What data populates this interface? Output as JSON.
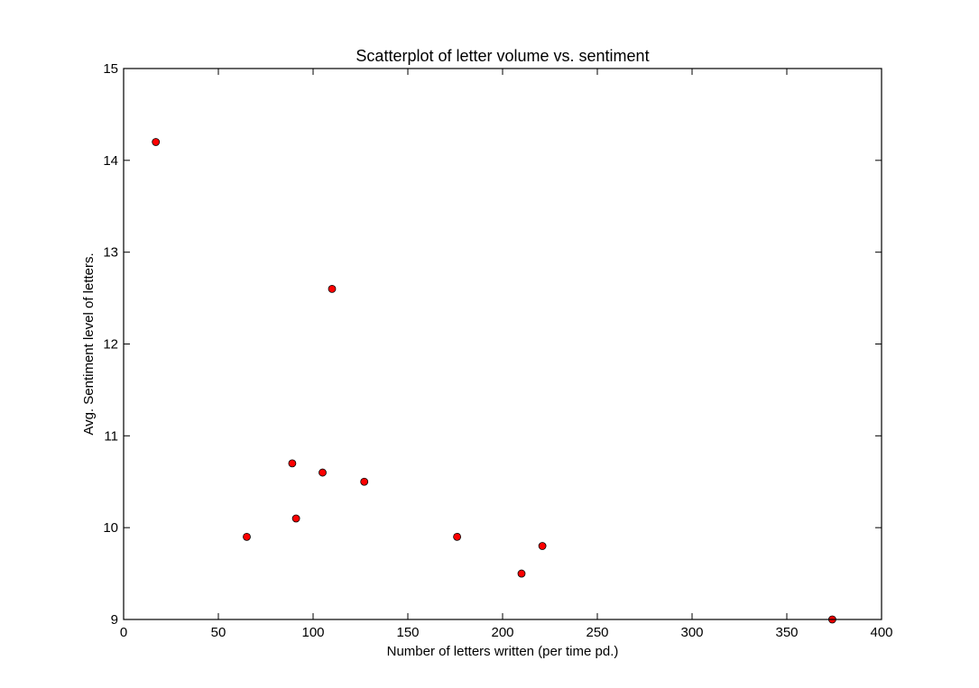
{
  "chart_data": {
    "type": "scatter",
    "title": "Scatterplot of letter volume vs. sentiment",
    "xlabel": "Number of letters written (per time pd.)",
    "ylabel": "Avg. Sentiment level of letters.",
    "xlim": [
      0,
      400
    ],
    "ylim": [
      9,
      15
    ],
    "x_ticks": [
      0,
      50,
      100,
      150,
      200,
      250,
      300,
      350,
      400
    ],
    "y_ticks": [
      9,
      10,
      11,
      12,
      13,
      14,
      15
    ],
    "grid": false,
    "marker_color": "#ff0000",
    "marker_edge_color": "#000000",
    "points": [
      {
        "x": 17,
        "y": 14.2
      },
      {
        "x": 65,
        "y": 9.9
      },
      {
        "x": 89,
        "y": 10.7
      },
      {
        "x": 91,
        "y": 10.1
      },
      {
        "x": 105,
        "y": 10.6
      },
      {
        "x": 110,
        "y": 12.6
      },
      {
        "x": 127,
        "y": 10.5
      },
      {
        "x": 176,
        "y": 9.9
      },
      {
        "x": 210,
        "y": 9.5
      },
      {
        "x": 221,
        "y": 9.8
      },
      {
        "x": 374,
        "y": 9.0
      }
    ]
  }
}
